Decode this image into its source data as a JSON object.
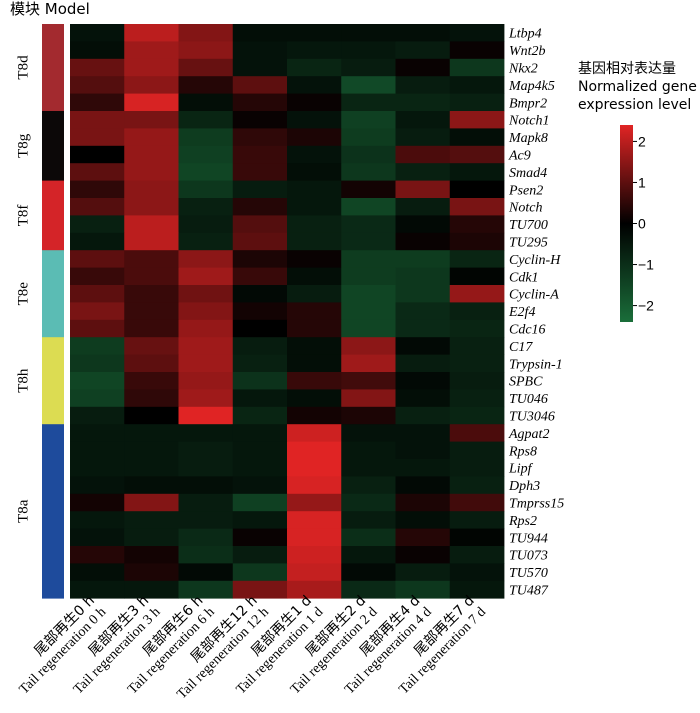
{
  "model_title": "模块 Model",
  "legend": {
    "title_zh": "基因相对表达量",
    "title_en_1": "Normalized gene",
    "title_en_2": "expression level",
    "ticks": [
      2,
      1,
      0,
      -1,
      -2
    ],
    "tick_labels": [
      "2",
      "1",
      "0",
      "−1",
      "−2"
    ],
    "range": [
      -2.4,
      2.4
    ],
    "colors": {
      "low": "#1a6e3a",
      "mid": "#000000",
      "high": "#e02424"
    }
  },
  "modules": [
    {
      "name": "T8d",
      "color": "#a32a2f",
      "rows": 5
    },
    {
      "name": "T8g",
      "color": "#0c0808",
      "rows": 4
    },
    {
      "name": "T8f",
      "color": "#d42428",
      "rows": 4
    },
    {
      "name": "T8e",
      "color": "#5bbcb4",
      "rows": 5
    },
    {
      "name": "T8h",
      "color": "#dcdc52",
      "rows": 5
    },
    {
      "name": "T8a",
      "color": "#1e4b9c",
      "rows": 10
    }
  ],
  "chart_data": {
    "type": "heatmap",
    "title": "",
    "xlabel": "",
    "ylabel": "",
    "columns": [
      {
        "zh": "尾部再生0 h",
        "en": "Tail regeneration 0 h"
      },
      {
        "zh": "尾部再生3 h",
        "en": "Tail regeneration 3 h"
      },
      {
        "zh": "尾部再生6 h",
        "en": "Tail regeneration 6 h"
      },
      {
        "zh": "尾部再生12 h",
        "en": "Tail regeneration 12 h"
      },
      {
        "zh": "尾部再生1 d",
        "en": "Tail regeneration 1 d"
      },
      {
        "zh": "尾部再生2 d",
        "en": "Tail regeneration 2 d"
      },
      {
        "zh": "尾部再生4 d",
        "en": "Tail regeneration 4 d"
      },
      {
        "zh": "尾部再生7 d",
        "en": "Tail regeneration 7 d"
      }
    ],
    "genes": [
      "Ltbp4",
      "Wnt2b",
      "Nkx2",
      "Map4k5",
      "Bmpr2",
      "Notch1",
      "Mapk8",
      "Ac9",
      "Smad4",
      "Psen2",
      "Notch",
      "TU700",
      "TU295",
      "Cyclin-H",
      "Cdk1",
      "Cyclin-A",
      "E2f4",
      "Cdc16",
      "C17",
      "Trypsin-1",
      "SPBC",
      "TU046",
      "TU3046",
      "Agpat2",
      "Rps8",
      "Lipf",
      "Dph3",
      "Tmprss15",
      "Rps2",
      "TU944",
      "TU073",
      "TU570",
      "TU487"
    ],
    "values": [
      [
        -0.4,
        2.0,
        1.4,
        -0.3,
        -0.3,
        -0.3,
        -0.3,
        -0.4
      ],
      [
        -0.3,
        1.7,
        1.5,
        -0.4,
        -0.5,
        -0.5,
        -0.6,
        0.1
      ],
      [
        1.1,
        1.7,
        1.1,
        -0.4,
        -0.8,
        -0.6,
        0.1,
        -1.2
      ],
      [
        0.9,
        1.5,
        0.4,
        1.0,
        -0.4,
        -1.6,
        -0.6,
        -0.5
      ],
      [
        0.5,
        2.3,
        -0.3,
        0.4,
        0.1,
        -0.8,
        -0.8,
        -0.7
      ],
      [
        1.3,
        1.3,
        -0.8,
        0.1,
        -0.4,
        -1.4,
        -0.5,
        1.5
      ],
      [
        1.3,
        1.6,
        -1.3,
        0.5,
        0.3,
        -1.3,
        -0.6,
        -0.3
      ],
      [
        0.0,
        1.6,
        -1.4,
        0.6,
        -0.4,
        -1.1,
        0.8,
        0.9
      ],
      [
        1.0,
        1.6,
        -1.5,
        0.6,
        -0.3,
        -1.2,
        -0.7,
        -0.5
      ],
      [
        0.5,
        1.5,
        -1.2,
        -0.6,
        -0.5,
        0.2,
        1.3,
        0.0
      ],
      [
        0.9,
        1.5,
        -0.7,
        0.4,
        -0.5,
        -1.5,
        -0.6,
        1.3
      ],
      [
        -0.7,
        2.0,
        -0.6,
        0.9,
        -0.7,
        -0.9,
        -0.2,
        0.4
      ],
      [
        -0.5,
        2.0,
        -0.7,
        1.0,
        -0.7,
        -0.9,
        0.1,
        0.3
      ],
      [
        1.0,
        0.8,
        1.5,
        0.3,
        0.1,
        -1.3,
        -1.3,
        -0.8
      ],
      [
        0.6,
        0.8,
        1.7,
        0.6,
        -0.3,
        -1.3,
        -1.2,
        -0.1
      ],
      [
        1.0,
        0.6,
        1.2,
        -0.2,
        -0.6,
        -1.5,
        -1.2,
        1.6
      ],
      [
        1.3,
        0.6,
        1.4,
        0.2,
        0.4,
        -1.5,
        -0.9,
        -0.7
      ],
      [
        1.0,
        0.6,
        1.6,
        0.0,
        0.4,
        -1.5,
        -0.9,
        -0.8
      ],
      [
        -1.3,
        1.1,
        1.7,
        -0.6,
        -0.3,
        1.5,
        -0.2,
        -0.7
      ],
      [
        -1.2,
        1.0,
        1.7,
        -0.7,
        -0.3,
        1.7,
        -0.6,
        -0.7
      ],
      [
        -1.5,
        0.6,
        1.6,
        -1.1,
        0.6,
        0.7,
        -0.2,
        -0.6
      ],
      [
        -1.4,
        0.5,
        1.7,
        -0.5,
        -0.3,
        1.4,
        -0.3,
        -0.7
      ],
      [
        -0.6,
        0.0,
        2.4,
        -0.8,
        0.2,
        0.3,
        -0.7,
        -0.8
      ],
      [
        -0.5,
        -0.5,
        -0.5,
        -0.5,
        2.2,
        -0.4,
        -0.4,
        0.8
      ],
      [
        -0.5,
        -0.5,
        -0.6,
        -0.5,
        2.4,
        -0.5,
        -0.4,
        -0.6
      ],
      [
        -0.5,
        -0.5,
        -0.6,
        -0.5,
        2.4,
        -0.5,
        -0.5,
        -0.6
      ],
      [
        -0.4,
        -0.3,
        -0.3,
        -0.4,
        2.3,
        -0.7,
        -0.2,
        -0.7
      ],
      [
        0.2,
        1.4,
        -0.6,
        -1.4,
        1.6,
        -0.9,
        0.3,
        0.7
      ],
      [
        -0.5,
        -0.6,
        -0.6,
        -0.5,
        2.3,
        -0.6,
        -0.3,
        -0.6
      ],
      [
        -0.4,
        -0.6,
        -0.9,
        0.1,
        2.3,
        -1.0,
        0.4,
        -0.1
      ],
      [
        0.4,
        0.2,
        -1.0,
        -0.6,
        2.2,
        -0.5,
        0.1,
        -0.6
      ],
      [
        -0.3,
        0.3,
        -0.2,
        -1.2,
        2.1,
        -0.2,
        -0.6,
        -0.4
      ],
      [
        -0.5,
        -0.5,
        -1.2,
        1.3,
        1.8,
        -0.9,
        -1.2,
        -0.5
      ]
    ],
    "colorbar_range": [
      -2.4,
      2.4
    ]
  }
}
